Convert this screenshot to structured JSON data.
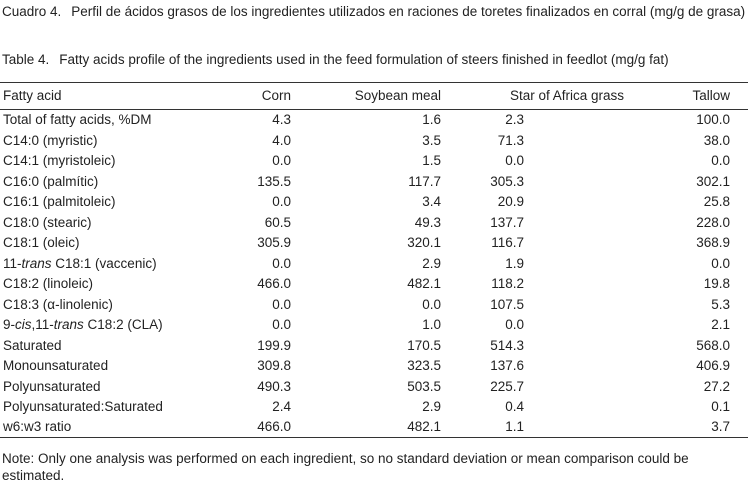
{
  "caption": {
    "es_label": "Cuadro 4.",
    "es_text": "Perfil de ácidos grasos de los ingredientes utilizados en raciones de toretes finalizados en corral (mg/g de grasa)",
    "en_label": "Table 4.",
    "en_text": "Fatty acids profile of the ingredients used in the feed formulation of steers finished in feedlot (mg/g fat)"
  },
  "table": {
    "headers": [
      "Fatty acid",
      "Corn",
      "Soybean meal",
      "Star of Africa grass",
      "Tallow"
    ],
    "rows": [
      {
        "name": "Total of fatty acids, %DM",
        "values": [
          "4.3",
          "1.6",
          "2.3",
          "100.0"
        ]
      },
      {
        "name": "C14:0 (myristic)",
        "values": [
          "4.0",
          "3.5",
          "71.3",
          "38.0"
        ]
      },
      {
        "name": "C14:1 (myristoleic)",
        "values": [
          "0.0",
          "1.5",
          "0.0",
          "0.0"
        ]
      },
      {
        "name": "C16:0 (palmític)",
        "values": [
          "135.5",
          "117.7",
          "305.3",
          "302.1"
        ]
      },
      {
        "name": "C16:1 (palmitoleic)",
        "values": [
          "0.0",
          "3.4",
          "20.9",
          "25.8"
        ]
      },
      {
        "name": "C18:0 (stearic)",
        "values": [
          "60.5",
          "49.3",
          "137.7",
          "228.0"
        ]
      },
      {
        "name": "C18:1 (oleic)",
        "values": [
          "305.9",
          "320.1",
          "116.7",
          "368.9"
        ]
      },
      {
        "name_pre": "11-",
        "name_em": "trans",
        "name_post": " C18:1 (vaccenic)",
        "values": [
          "0.0",
          "2.9",
          "1.9",
          "0.0"
        ]
      },
      {
        "name": "C18:2 (linoleic)",
        "values": [
          "466.0",
          "482.1",
          "118.2",
          "19.8"
        ]
      },
      {
        "name": "C18:3 (α-linolenic)",
        "values": [
          "0.0",
          "0.0",
          "107.5",
          "5.3"
        ]
      },
      {
        "name_pre": "9-",
        "name_em": "cis",
        "name_mid": ",11-",
        "name_em2": "trans",
        "name_post": " C18:2 (CLA)",
        "values": [
          "0.0",
          "1.0",
          "0.0",
          "2.1"
        ]
      },
      {
        "name": "Saturated",
        "values": [
          "199.9",
          "170.5",
          "514.3",
          "568.0"
        ]
      },
      {
        "name": "Monounsaturated",
        "values": [
          "309.8",
          "323.5",
          "137.6",
          "406.9"
        ]
      },
      {
        "name": "Polyunsaturated",
        "values": [
          "490.3",
          "503.5",
          "225.7",
          "27.2"
        ]
      },
      {
        "name": "Polyunsaturated:Saturated",
        "values": [
          "2.4",
          "2.9",
          "0.4",
          "0.1"
        ]
      },
      {
        "name": "w6:w3 ratio",
        "values": [
          "466.0",
          "482.1",
          "1.1",
          "3.7"
        ]
      }
    ]
  },
  "note": "Note: Only one analysis was performed on each ingredient, so no standard deviation or mean comparison could be estimated."
}
